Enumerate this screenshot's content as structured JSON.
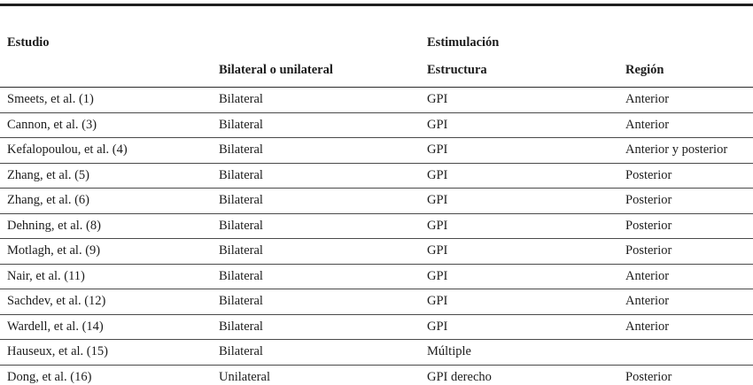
{
  "table": {
    "title_semantic": "Estudios de estimulación cerebral profunda",
    "header": {
      "estudio": "Estudio",
      "lateralidad": "Bilateral o unilateral",
      "grupo_estimulacion": "Estimulación",
      "estructura": "Estructura",
      "region": "Región"
    },
    "rows": [
      {
        "estudio": "Smeets, et al. (1)",
        "lateralidad": "Bilateral",
        "estructura": "GPI",
        "region": "Anterior"
      },
      {
        "estudio": "Cannon, et al. (3)",
        "lateralidad": "Bilateral",
        "estructura": "GPI",
        "region": "Anterior"
      },
      {
        "estudio": "Kefalopoulou, et al. (4)",
        "lateralidad": "Bilateral",
        "estructura": "GPI",
        "region": "Anterior y posterior"
      },
      {
        "estudio": "Zhang, et al. (5)",
        "lateralidad": "Bilateral",
        "estructura": "GPI",
        "region": "Posterior"
      },
      {
        "estudio": "Zhang, et al. (6)",
        "lateralidad": "Bilateral",
        "estructura": "GPI",
        "region": "Posterior"
      },
      {
        "estudio": "Dehning, et al. (8)",
        "lateralidad": "Bilateral",
        "estructura": "GPI",
        "region": "Posterior"
      },
      {
        "estudio": "Motlagh, et al. (9)",
        "lateralidad": "Bilateral",
        "estructura": "GPI",
        "region": "Posterior"
      },
      {
        "estudio": "Nair, et al. (11)",
        "lateralidad": "Bilateral",
        "estructura": "GPI",
        "region": "Anterior"
      },
      {
        "estudio": "Sachdev, et al. (12)",
        "lateralidad": "Bilateral",
        "estructura": "GPI",
        "region": "Anterior"
      },
      {
        "estudio": "Wardell, et al. (14)",
        "lateralidad": "Bilateral",
        "estructura": "GPI",
        "region": "Anterior"
      },
      {
        "estudio": "Hauseux, et al. (15)",
        "lateralidad": "Bilateral",
        "estructura": "Múltiple",
        "region": ""
      },
      {
        "estudio": "Dong, et al. (16)",
        "lateralidad": "Unilateral",
        "estructura": "GPI derecho",
        "region": "Posterior"
      }
    ]
  },
  "colors": {
    "background": "#ffffff",
    "text": "#1c1c1c",
    "rule_heavy": "#1f1f1f",
    "rule_light": "#4a4a4a"
  }
}
